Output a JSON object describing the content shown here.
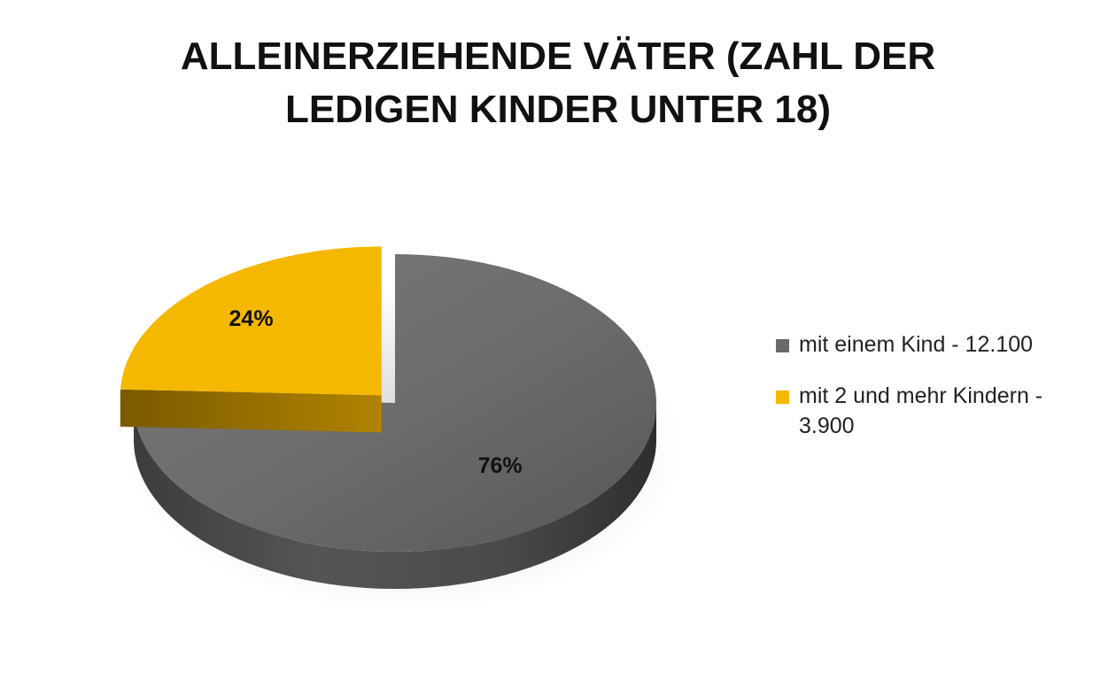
{
  "chart_data": {
    "type": "pie",
    "title_lines": [
      "ALLEINERZIEHENDE VÄTER (ZAHL DER",
      "LEDIGEN KINDER UNTER 18)"
    ],
    "slices": [
      {
        "label": "mit einem Kind - 12.100",
        "value": 12100,
        "percent_label": "76%",
        "color": "#6a6a6a"
      },
      {
        "label": "mit 2 und mehr Kindern - 3.900",
        "value": 3900,
        "percent_label": "24%",
        "color": "#f5b800"
      }
    ],
    "legend_position": "right",
    "exploded_slice": "mit 2 und mehr Kindern - 3.900",
    "style": "3d"
  }
}
